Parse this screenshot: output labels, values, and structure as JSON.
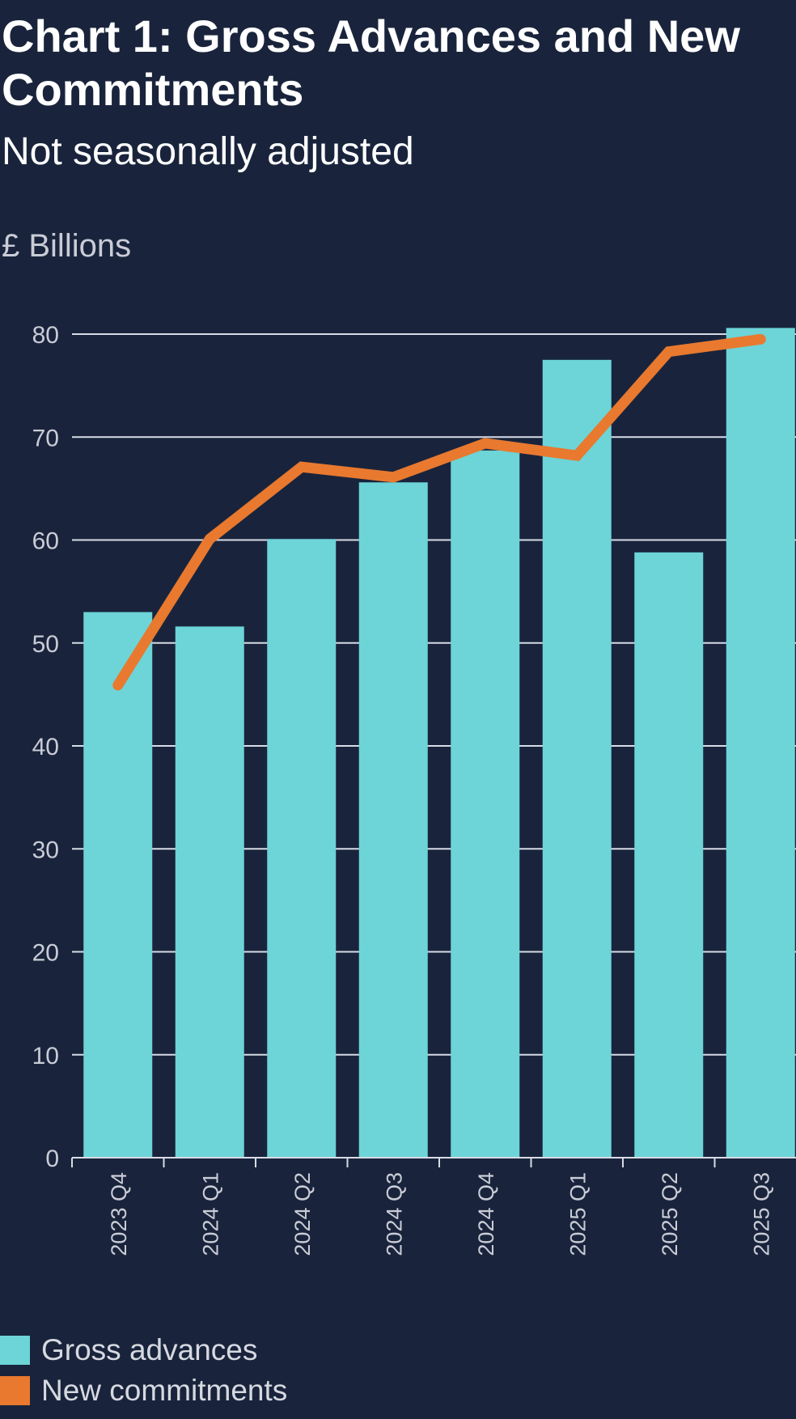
{
  "chart_data": {
    "type": "bar",
    "title": "Chart 1: Gross Advances and New Commitments",
    "subtitle": "Not seasonally adjusted",
    "ylabel": "£ Billions",
    "xlabel": "",
    "ylim": [
      0,
      80
    ],
    "yticks": [
      "0",
      "10",
      "20",
      "30",
      "40",
      "50",
      "60",
      "70",
      "80"
    ],
    "grid": true,
    "legend_position": "bottom-left",
    "categories": [
      "2023 Q4",
      "2024 Q1",
      "2024 Q2",
      "2024 Q3",
      "2024 Q4",
      "2025 Q1",
      "2025 Q2",
      "2025 Q3"
    ],
    "series": [
      {
        "name": "Gross advances",
        "type": "bar",
        "color": "#6dd4d7",
        "values": [
          53.0,
          51.6,
          60.1,
          65.6,
          68.7,
          77.5,
          58.8,
          80.6
        ]
      },
      {
        "name": "New commitments",
        "type": "line",
        "color": "#e8792f",
        "values": [
          45.9,
          60.1,
          67.1,
          66.1,
          69.4,
          68.2,
          78.3,
          79.5
        ]
      }
    ]
  },
  "colors": {
    "background": "#19243c",
    "grid": "#d8dbe6",
    "axis_text": "#c9ccd6"
  }
}
